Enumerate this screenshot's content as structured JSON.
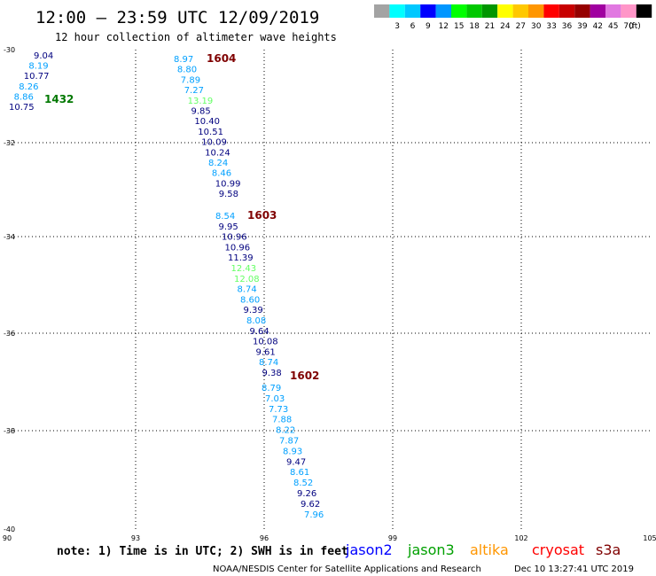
{
  "header": {
    "title": "12:00 – 23:59 UTC 12/09/2019",
    "subtitle": "12 hour collection of altimeter wave heights"
  },
  "legend": {
    "swatches": [
      {
        "color": "#a3a3a3",
        "label": ""
      },
      {
        "color": "#00ffff",
        "label": "3"
      },
      {
        "color": "#00c8ff",
        "label": "6"
      },
      {
        "color": "#0000ff",
        "label": "9"
      },
      {
        "color": "#0096ff",
        "label": "12"
      },
      {
        "color": "#00ff00",
        "label": "15"
      },
      {
        "color": "#00c800",
        "label": "18"
      },
      {
        "color": "#009600",
        "label": "21"
      },
      {
        "color": "#ffff00",
        "label": "24"
      },
      {
        "color": "#ffc800",
        "label": "27"
      },
      {
        "color": "#ff9600",
        "label": "30"
      },
      {
        "color": "#ff0000",
        "label": "33"
      },
      {
        "color": "#c80000",
        "label": "36"
      },
      {
        "color": "#960000",
        "label": "39"
      },
      {
        "color": "#a000a0",
        "label": "42"
      },
      {
        "color": "#e178e1",
        "label": "45"
      },
      {
        "color": "#ff96c8",
        "label": "70"
      },
      {
        "color": "#000000",
        "label": ""
      }
    ],
    "unit": "(ft)"
  },
  "axes": {
    "lat_labels": [
      "-30",
      "-32",
      "-34",
      "-36",
      "-38",
      "-40"
    ],
    "lon_labels": [
      "90",
      "93",
      "96",
      "99",
      "102",
      "105"
    ]
  },
  "tracks": [
    {
      "id": "1432",
      "color": "#007800",
      "points": [
        {
          "v": "9.04",
          "c": "#00007f"
        },
        {
          "v": "8.19",
          "c": "#00a0ff"
        },
        {
          "v": "10.77",
          "c": "#00007f"
        },
        {
          "v": "8.26",
          "c": "#00a0ff"
        },
        {
          "v": "8.86",
          "c": "#00a0ff"
        },
        {
          "v": "10.75",
          "c": "#00007f"
        }
      ]
    },
    {
      "id": "1604",
      "color": "#7f0000",
      "points": [
        {
          "v": "8.97",
          "c": "#00a0ff"
        },
        {
          "v": "8.80",
          "c": "#00a0ff"
        },
        {
          "v": "7.89",
          "c": "#00a0ff"
        },
        {
          "v": "7.27",
          "c": "#00a0ff"
        },
        {
          "v": "13.19",
          "c": "#64ff64"
        },
        {
          "v": "9.85",
          "c": "#00007f"
        },
        {
          "v": "10.40",
          "c": "#00007f"
        },
        {
          "v": "10.51",
          "c": "#00007f"
        },
        {
          "v": "10.09",
          "c": "#00007f"
        },
        {
          "v": "10.24",
          "c": "#00007f"
        },
        {
          "v": "8.24",
          "c": "#00a0ff"
        },
        {
          "v": "8.46",
          "c": "#00a0ff"
        },
        {
          "v": "10.99",
          "c": "#00007f"
        },
        {
          "v": "9.58",
          "c": "#00007f"
        }
      ]
    },
    {
      "id": "1603",
      "color": "#7f0000",
      "points": [
        {
          "v": "8.54",
          "c": "#00a0ff"
        },
        {
          "v": "9.95",
          "c": "#00007f"
        },
        {
          "v": "10.96",
          "c": "#00007f"
        },
        {
          "v": "10.96",
          "c": "#00007f"
        },
        {
          "v": "11.39",
          "c": "#00007f"
        },
        {
          "v": "12.43",
          "c": "#64ff64"
        },
        {
          "v": "12.08",
          "c": "#64ff64"
        },
        {
          "v": "8.74",
          "c": "#00a0ff"
        },
        {
          "v": "8.60",
          "c": "#00a0ff"
        },
        {
          "v": "9.39",
          "c": "#00007f"
        },
        {
          "v": "8.08",
          "c": "#00a0ff"
        },
        {
          "v": "9.64",
          "c": "#00007f"
        },
        {
          "v": "10.08",
          "c": "#00007f"
        },
        {
          "v": "9.61",
          "c": "#00007f"
        },
        {
          "v": "8.74",
          "c": "#00a0ff"
        },
        {
          "v": "9.38",
          "c": "#00007f"
        }
      ]
    },
    {
      "id": "1602",
      "color": "#7f0000",
      "points": [
        {
          "v": "8.79",
          "c": "#00a0ff"
        },
        {
          "v": "7.03",
          "c": "#00a0ff"
        },
        {
          "v": "7.73",
          "c": "#00a0ff"
        },
        {
          "v": "7.88",
          "c": "#00a0ff"
        },
        {
          "v": "8.22",
          "c": "#00a0ff"
        },
        {
          "v": "7.87",
          "c": "#00a0ff"
        },
        {
          "v": "8.93",
          "c": "#00a0ff"
        },
        {
          "v": "9.47",
          "c": "#00007f"
        },
        {
          "v": "8.61",
          "c": "#00a0ff"
        },
        {
          "v": "8.52",
          "c": "#00a0ff"
        },
        {
          "v": "9.26",
          "c": "#00007f"
        },
        {
          "v": "9.62",
          "c": "#00007f"
        },
        {
          "v": "7.96",
          "c": "#00a0ff"
        }
      ]
    }
  ],
  "footer": {
    "note": "note: 1) Time is in UTC; 2) SWH is in feet",
    "missions": [
      {
        "name": "jason2",
        "color": "#0000ff"
      },
      {
        "name": "jason3",
        "color": "#00a000"
      },
      {
        "name": "altika",
        "color": "#ff9600"
      },
      {
        "name": "cryosat",
        "color": "#ff0000"
      },
      {
        "name": "s3a",
        "color": "#7f0000"
      }
    ],
    "credit": "NOAA/NESDIS Center for Satellite Applications and Research",
    "timestamp": "Dec 10 13:27:41 UTC 2019"
  }
}
